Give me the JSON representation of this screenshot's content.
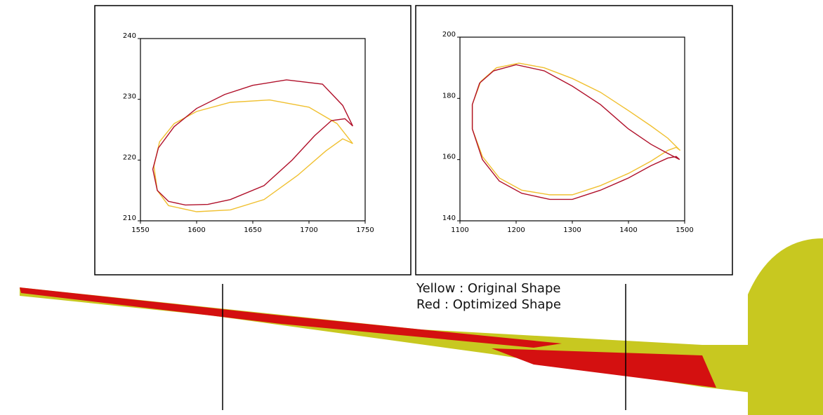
{
  "chart_data": [
    {
      "type": "line",
      "xlim": [
        1550,
        1750
      ],
      "xticks": [
        1550,
        1600,
        1650,
        1700,
        1750
      ],
      "ylim": [
        210,
        240
      ],
      "yticks": [
        210,
        220,
        230,
        240
      ],
      "series": [
        {
          "color": "#f0c030",
          "x": [
            1739,
            1725,
            1700,
            1665,
            1630,
            1600,
            1580,
            1567,
            1562,
            1565,
            1575,
            1600,
            1630,
            1660,
            1690,
            1715,
            1730,
            1736,
            1739
          ],
          "values": [
            222.7,
            226,
            228.7,
            229.9,
            229.5,
            228,
            226,
            223,
            219,
            215,
            212.5,
            211.5,
            211.8,
            213.5,
            217.5,
            221.5,
            223.5,
            223,
            222.7
          ]
        },
        {
          "color": "#b0102a",
          "x": [
            1739,
            1730,
            1712,
            1680,
            1650,
            1625,
            1600,
            1580,
            1566,
            1561,
            1565,
            1575,
            1590,
            1610,
            1630,
            1660,
            1685,
            1705,
            1720,
            1732,
            1739
          ],
          "values": [
            225.6,
            229,
            232.5,
            233.2,
            232.3,
            230.8,
            228.5,
            225.5,
            222,
            218.5,
            215,
            213.2,
            212.6,
            212.7,
            213.5,
            215.8,
            220,
            224,
            226.5,
            226.8,
            225.6
          ]
        }
      ]
    },
    {
      "type": "line",
      "xlim": [
        1100,
        1500
      ],
      "xticks": [
        1100,
        1200,
        1300,
        1400,
        1500
      ],
      "ylim": [
        140,
        200
      ],
      "yticks": [
        140,
        160,
        180,
        200
      ],
      "series": [
        {
          "color": "#f0c030",
          "x": [
            1492,
            1470,
            1440,
            1400,
            1350,
            1300,
            1250,
            1205,
            1165,
            1137,
            1122,
            1122,
            1140,
            1170,
            1210,
            1260,
            1300,
            1350,
            1400,
            1440,
            1470,
            1485,
            1492
          ],
          "values": [
            163,
            167,
            171,
            176,
            182,
            186.5,
            190,
            191.5,
            190,
            185.5,
            178,
            170,
            161,
            154,
            150,
            148.5,
            148.5,
            151.5,
            155.5,
            159.5,
            163,
            164,
            163
          ]
        },
        {
          "color": "#b0102a",
          "x": [
            1491,
            1470,
            1440,
            1400,
            1350,
            1300,
            1250,
            1200,
            1160,
            1135,
            1122,
            1122,
            1140,
            1170,
            1210,
            1260,
            1300,
            1350,
            1400,
            1440,
            1470,
            1485,
            1491
          ],
          "values": [
            160,
            162,
            165,
            170,
            178,
            184,
            189,
            191,
            189,
            185,
            178,
            170,
            160,
            153,
            149,
            147,
            147,
            150,
            154,
            158,
            160.5,
            161,
            160
          ]
        }
      ]
    }
  ],
  "annotations": [
    "Yellow : Original Shape",
    "Red : Optimized Shape"
  ]
}
